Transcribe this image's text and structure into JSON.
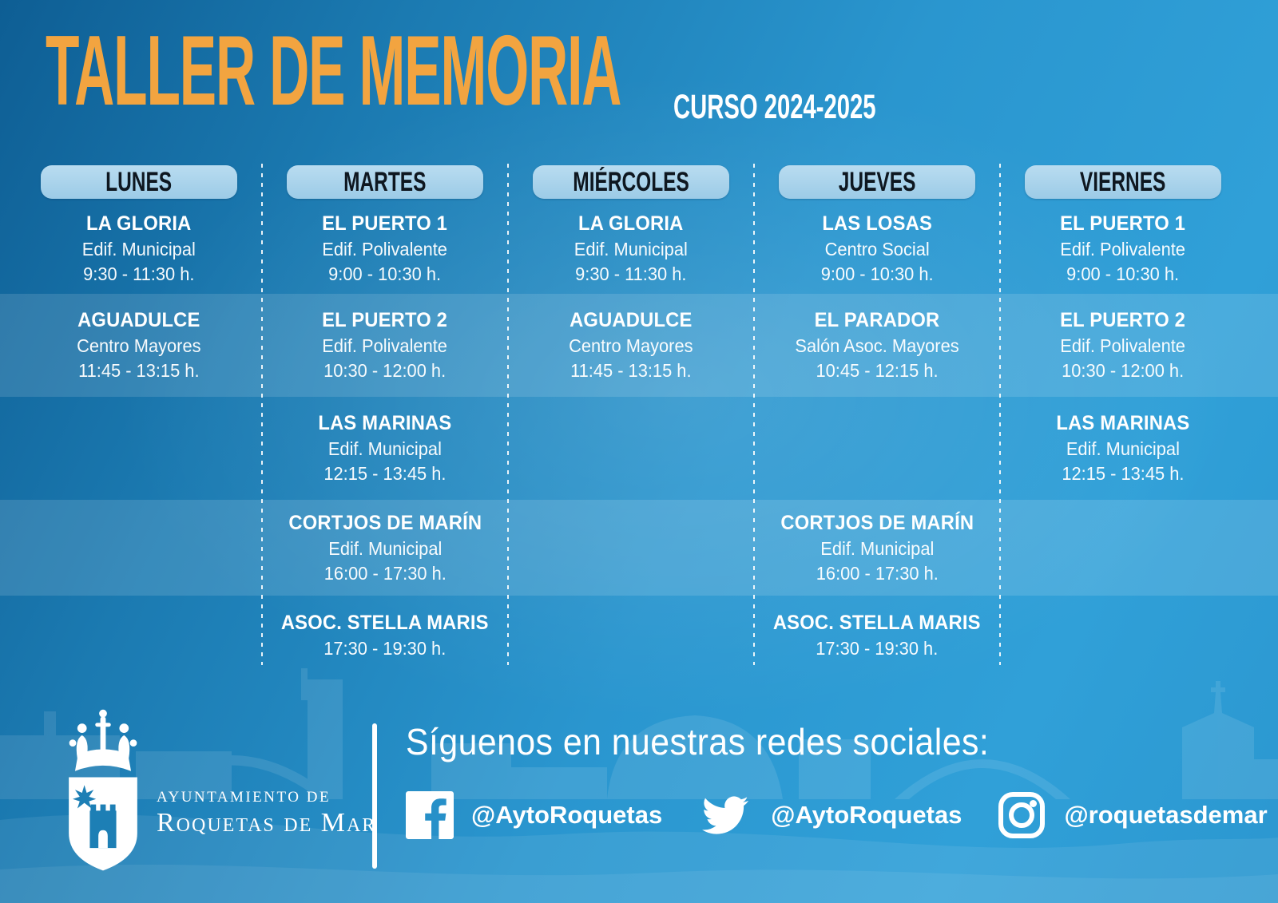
{
  "header": {
    "title": "TALLER DE MEMORIA",
    "subtitle": "CURSO 2024-2025"
  },
  "colors": {
    "accent_orange": "#f2a440",
    "background_dark_blue": "#0e5e94",
    "background_light_blue": "#30a0d8",
    "day_pill_blue": "#a6d0ea",
    "day_pill_text": "#0e1720",
    "row_band": "rgba(255,255,255,0.13)",
    "text_white": "#ffffff"
  },
  "schedule": {
    "days": [
      {
        "id": "lunes",
        "label": "LUNES",
        "slots": [
          {
            "name": "LA GLORIA",
            "venue": "Edif. Municipal",
            "time": "9:30 - 11:30 h."
          },
          {
            "name": "AGUADULCE",
            "venue": "Centro Mayores",
            "time": "11:45 - 13:15 h."
          },
          null,
          null,
          null
        ]
      },
      {
        "id": "martes",
        "label": "MARTES",
        "slots": [
          {
            "name": "EL PUERTO 1",
            "venue": "Edif. Polivalente",
            "time": "9:00 - 10:30 h."
          },
          {
            "name": "EL PUERTO 2",
            "venue": "Edif. Polivalente",
            "time": "10:30 - 12:00 h."
          },
          {
            "name": "LAS MARINAS",
            "venue": "Edif. Municipal",
            "time": "12:15 - 13:45 h."
          },
          {
            "name": "CORTJOS DE MARÍN",
            "venue": "Edif. Municipal",
            "time": "16:00 - 17:30 h."
          },
          {
            "name": "ASOC. STELLA MARIS",
            "venue": "",
            "time": "17:30 - 19:30 h."
          }
        ]
      },
      {
        "id": "miercoles",
        "label": "MIÉRCOLES",
        "slots": [
          {
            "name": "LA GLORIA",
            "venue": "Edif. Municipal",
            "time": "9:30 - 11:30 h."
          },
          {
            "name": "AGUADULCE",
            "venue": "Centro Mayores",
            "time": "11:45 - 13:15 h."
          },
          null,
          null,
          null
        ]
      },
      {
        "id": "jueves",
        "label": "JUEVES",
        "slots": [
          {
            "name": "LAS LOSAS",
            "venue": "Centro Social",
            "time": "9:00 - 10:30 h."
          },
          {
            "name": "EL PARADOR",
            "venue": "Salón Asoc. Mayores",
            "time": "10:45 - 12:15 h."
          },
          null,
          {
            "name": "CORTJOS DE MARÍN",
            "venue": "Edif. Municipal",
            "time": "16:00 - 17:30 h."
          },
          {
            "name": "ASOC. STELLA MARIS",
            "venue": "",
            "time": "17:30 - 19:30 h."
          }
        ]
      },
      {
        "id": "viernes",
        "label": "VIERNES",
        "slots": [
          {
            "name": "EL PUERTO 1",
            "venue": "Edif. Polivalente",
            "time": "9:00 - 10:30 h."
          },
          {
            "name": "EL PUERTO 2",
            "venue": "Edif. Polivalente",
            "time": "10:30 - 12:00 h."
          },
          {
            "name": "LAS MARINAS",
            "venue": "Edif. Municipal",
            "time": "12:15 - 13:45 h."
          },
          null,
          null
        ]
      }
    ]
  },
  "footer": {
    "org_line1": "AYUNTAMIENTO DE",
    "org_line2": "Roquetas de Mar",
    "logo_icon": "crown-shield-castle-logo",
    "social_heading": "Síguenos en nuestras redes sociales:",
    "social": [
      {
        "network": "facebook",
        "icon": "facebook-icon",
        "handle": "@AytoRoquetas"
      },
      {
        "network": "twitter",
        "icon": "twitter-icon",
        "handle": "@AytoRoquetas"
      },
      {
        "network": "instagram",
        "icon": "instagram-icon",
        "handle": "@roquetasdemar"
      }
    ]
  }
}
